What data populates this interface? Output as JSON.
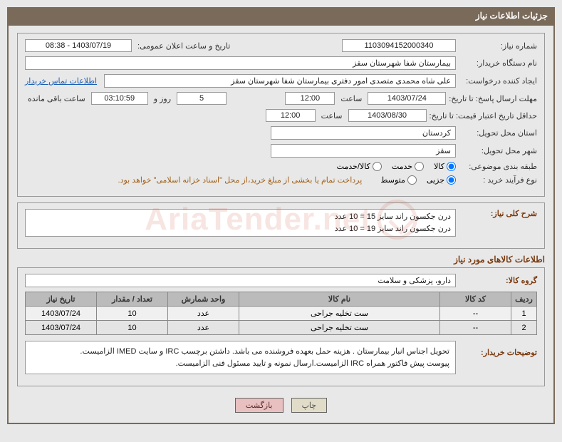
{
  "header": {
    "title": "جزئیات اطلاعات نیاز"
  },
  "fields": {
    "need_number_label": "شماره نیاز:",
    "need_number": "1103094152000340",
    "announce_label": "تاریخ و ساعت اعلان عمومی:",
    "announce_value": "1403/07/19 - 08:38",
    "buyer_org_label": "نام دستگاه خریدار:",
    "buyer_org": "بیمارستان شفا شهرستان سقز",
    "requester_label": "ایجاد کننده درخواست:",
    "requester": "علی شاه محمدی متصدی امور دفتری بیمارستان شفا شهرستان سقز",
    "buyer_contact_link": "اطلاعات تماس خریدار",
    "deadline_label": "مهلت ارسال پاسخ: تا تاریخ:",
    "deadline_date": "1403/07/24",
    "hour_label": "ساعت",
    "deadline_time": "12:00",
    "days_value": "5",
    "days_and": "روز و",
    "countdown": "03:10:59",
    "remaining_label": "ساعت باقی مانده",
    "validity_label": "حداقل تاریخ اعتبار قیمت: تا تاریخ:",
    "validity_date": "1403/08/30",
    "validity_time": "12:00",
    "province_label": "استان محل تحویل:",
    "province": "کردستان",
    "city_label": "شهر محل تحویل:",
    "city": "سقز",
    "category_label": "طبقه بندی موضوعی:",
    "radio_goods": "کالا",
    "radio_service": "خدمت",
    "radio_goods_service": "کالا/خدمت",
    "process_label": "نوع فرآیند خرید :",
    "radio_partial": "جزیی",
    "radio_medium": "متوسط",
    "payment_note": "پرداخت تمام یا بخشی از مبلغ خرید،از محل \"اسناد خزانه اسلامی\" خواهد بود.",
    "summary_label": "شرح کلی نیاز:",
    "summary_line1": "درن جکسون راند سایز 15 = 10 عدد",
    "summary_line2": "درن جکسون راند سایز 19 = 10 عدد",
    "items_title": "اطلاعات کالاهای مورد نیاز",
    "goods_group_label": "گروه کالا:",
    "goods_group": "دارو، پزشکی و سلامت",
    "buyer_notes_label": "توضیحات خریدار:",
    "buyer_notes_line1": "تحویل اجناس  انبار بیمارستان . هزینه حمل بعهده فروشنده می باشد.  داشتن برچسب IRC  و سایت IMED  الزامیست.",
    "buyer_notes_line2": "پیوست پیش فاکتور همراه IRC  الزامیست.ارسال نمونه و تایید مسئول فنی الزامیست."
  },
  "table": {
    "headers": {
      "row": "ردیف",
      "code": "کد کالا",
      "name": "نام کالا",
      "unit": "واحد شمارش",
      "qty": "تعداد / مقدار",
      "date": "تاریخ نیاز"
    },
    "rows": [
      {
        "row": "1",
        "code": "--",
        "name": "ست تخلیه جراحی",
        "unit": "عدد",
        "qty": "10",
        "date": "1403/07/24"
      },
      {
        "row": "2",
        "code": "--",
        "name": "ست تخلیه جراحی",
        "unit": "عدد",
        "qty": "10",
        "date": "1403/07/24"
      }
    ]
  },
  "buttons": {
    "print": "چاپ",
    "back": "بازگشت"
  },
  "watermark": "AriaTender.net",
  "colors": {
    "header_bg": "#7a6a5a",
    "border": "#7a6a5a",
    "link": "#1a5fb4",
    "note": "#a06018",
    "section_title": "#7a3a10",
    "th_bg": "#bbbbbb",
    "btn_back_bg": "#e8c0c0"
  }
}
